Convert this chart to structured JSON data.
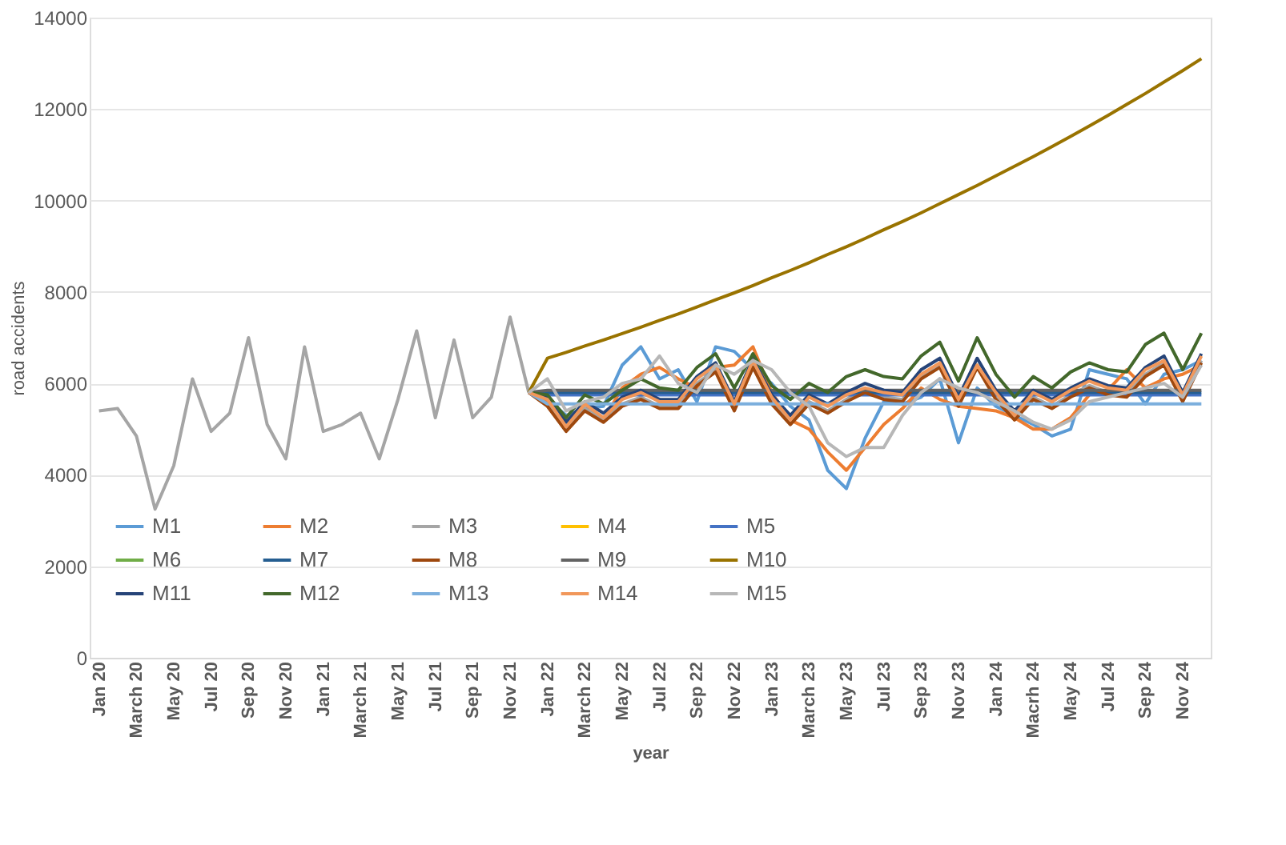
{
  "chart_data": {
    "type": "line",
    "xlabel": "year",
    "ylabel": "road accidents",
    "categories": [
      "Jan 20",
      null,
      "March 20",
      null,
      "May 20",
      null,
      "Jul 20",
      null,
      "Sep 20",
      null,
      "Nov 20",
      null,
      "Jan 21",
      null,
      "March 21",
      null,
      "May 21",
      null,
      "Jul 21",
      null,
      "Sep 21",
      null,
      "Nov 21",
      null,
      "Jan 22",
      null,
      "March 22",
      null,
      "May 22",
      null,
      "Jul 22",
      null,
      "Sep 22",
      null,
      "Nov 22",
      null,
      "Jan 23",
      null,
      "March 23",
      null,
      "May 23",
      null,
      "Jul 23",
      null,
      "Sep 23",
      null,
      "Nov 23",
      null,
      "Jan 24",
      null,
      "Macrh 24",
      null,
      "May 24",
      null,
      "Jul 24",
      null,
      "Sep 24",
      null,
      "Nov 24",
      null
    ],
    "ylim": [
      0,
      14000
    ],
    "yticks": [
      0,
      2000,
      4000,
      6000,
      8000,
      10000,
      12000,
      14000
    ],
    "grid": "y",
    "legend": "bottom left",
    "series": [
      {
        "color": "#a5a5a5",
        "values": [
          5400,
          5450,
          4850,
          3250,
          4200,
          6100,
          4950,
          5350,
          7000,
          5100,
          4350,
          6800,
          4950,
          5100,
          5350,
          4350,
          5650,
          7150,
          5250,
          6950,
          5250,
          5700,
          7450,
          5800,
          null,
          null,
          null,
          null,
          null,
          null,
          null,
          null,
          null,
          null,
          null,
          null,
          null,
          null,
          null,
          null,
          null,
          null,
          null,
          null,
          null,
          null,
          null,
          null,
          null,
          null,
          null,
          null,
          null,
          null,
          null,
          null,
          null,
          null,
          null,
          null
        ]
      },
      {
        "name": "M1",
        "color": "#5b9bd5",
        "values": [
          null,
          null,
          null,
          null,
          null,
          null,
          null,
          null,
          null,
          null,
          null,
          null,
          null,
          null,
          null,
          null,
          null,
          null,
          null,
          null,
          null,
          null,
          null,
          5800,
          5650,
          5300,
          5450,
          5500,
          6400,
          6800,
          6100,
          6300,
          5600,
          6800,
          6700,
          6300,
          6000,
          5500,
          5200,
          4100,
          3700,
          4800,
          5600,
          5550,
          5700,
          6100,
          4700,
          5900,
          5500,
          5300,
          5100,
          4850,
          5000,
          6300,
          6200,
          6100,
          5550,
          6200,
          6300,
          6500
        ]
      },
      {
        "name": "M2",
        "color": "#ed7d31",
        "values": [
          null,
          null,
          null,
          null,
          null,
          null,
          null,
          null,
          null,
          null,
          null,
          null,
          null,
          null,
          null,
          null,
          null,
          null,
          null,
          null,
          null,
          null,
          null,
          5800,
          5600,
          5000,
          5450,
          5200,
          5900,
          6200,
          6350,
          6100,
          5900,
          6350,
          6400,
          6800,
          5800,
          5200,
          5000,
          4500,
          4100,
          4600,
          5100,
          5450,
          5900,
          5650,
          5500,
          5450,
          5400,
          5250,
          5000,
          5000,
          5250,
          5750,
          5850,
          6300,
          5900,
          6100,
          6200,
          6400
        ]
      },
      {
        "name": "M3",
        "color": "#a5a5a5",
        "values": [
          null,
          null,
          null,
          null,
          null,
          null,
          null,
          null,
          null,
          null,
          null,
          null,
          null,
          null,
          null,
          null,
          null,
          null,
          null,
          null,
          null,
          null,
          null,
          5800,
          5550,
          5000,
          5450,
          5200,
          5550,
          5700,
          5500,
          5500,
          6000,
          6300,
          5450,
          6400,
          5600,
          5150,
          5600,
          5400,
          5650,
          5850,
          5700,
          5650,
          6150,
          6400,
          5550,
          6400,
          5700,
          5250,
          5700,
          5500,
          5750,
          5950,
          5800,
          5750,
          6200,
          6450,
          5650,
          6500
        ]
      },
      {
        "name": "M4",
        "color": "#ffc000",
        "values": [
          null,
          null,
          null,
          null,
          null,
          null,
          null,
          null,
          null,
          null,
          null,
          null,
          null,
          null,
          null,
          null,
          null,
          null,
          null,
          null,
          null,
          null,
          null,
          null,
          null,
          null,
          null,
          null,
          null,
          null,
          null,
          null,
          null,
          null,
          null,
          null,
          null,
          null,
          null,
          null,
          null,
          null,
          null,
          null,
          null,
          null,
          null,
          null,
          null,
          null,
          null,
          null,
          null,
          null,
          null,
          null,
          null,
          null,
          null,
          null
        ]
      },
      {
        "name": "M5",
        "color": "#4472c4",
        "values": [
          null,
          null,
          null,
          null,
          null,
          null,
          null,
          null,
          null,
          null,
          null,
          null,
          null,
          null,
          null,
          null,
          null,
          null,
          null,
          null,
          null,
          null,
          null,
          5800,
          5750,
          5750,
          5750,
          5750,
          5750,
          5750,
          5750,
          5750,
          5750,
          5750,
          5750,
          5750,
          5750,
          5750,
          5750,
          5750,
          5750,
          5750,
          5750,
          5750,
          5750,
          5750,
          5750,
          5750,
          5750,
          5750,
          5750,
          5750,
          5750,
          5750,
          5750,
          5750,
          5750,
          5750,
          5750,
          5750
        ]
      },
      {
        "name": "M6",
        "color": "#70ad47",
        "values": [
          null,
          null,
          null,
          null,
          null,
          null,
          null,
          null,
          null,
          null,
          null,
          null,
          null,
          null,
          null,
          null,
          null,
          null,
          null,
          null,
          null,
          null,
          null,
          null,
          null,
          null,
          null,
          null,
          null,
          null,
          null,
          null,
          null,
          null,
          null,
          null,
          null,
          null,
          null,
          null,
          null,
          null,
          null,
          null,
          null,
          null,
          null,
          null,
          null,
          null,
          null,
          null,
          null,
          null,
          null,
          null,
          null,
          null,
          null,
          null
        ]
      },
      {
        "name": "M7",
        "color": "#255e91",
        "values": [
          null,
          null,
          null,
          null,
          null,
          null,
          null,
          null,
          null,
          null,
          null,
          null,
          null,
          null,
          null,
          null,
          null,
          null,
          null,
          null,
          null,
          null,
          null,
          5800,
          5800,
          5800,
          5800,
          5800,
          5800,
          5800,
          5800,
          5800,
          5800,
          5800,
          5800,
          5800,
          5800,
          5800,
          5800,
          5800,
          5800,
          5800,
          5800,
          5800,
          5800,
          5800,
          5800,
          5800,
          5800,
          5800,
          5800,
          5800,
          5800,
          5800,
          5800,
          5800,
          5800,
          5800,
          5800,
          5800
        ]
      },
      {
        "name": "M8",
        "color": "#9e480e",
        "values": [
          null,
          null,
          null,
          null,
          null,
          null,
          null,
          null,
          null,
          null,
          null,
          null,
          null,
          null,
          null,
          null,
          null,
          null,
          null,
          null,
          null,
          null,
          null,
          5800,
          5500,
          4950,
          5400,
          5150,
          5500,
          5650,
          5450,
          5450,
          5950,
          6250,
          5400,
          6350,
          5550,
          5100,
          5550,
          5350,
          5600,
          5800,
          5650,
          5600,
          6100,
          6350,
          5500,
          6350,
          5650,
          5200,
          5650,
          5450,
          5700,
          5900,
          5750,
          5700,
          6150,
          6400,
          5600,
          6450
        ]
      },
      {
        "name": "M9",
        "color": "#636363",
        "values": [
          null,
          null,
          null,
          null,
          null,
          null,
          null,
          null,
          null,
          null,
          null,
          null,
          null,
          null,
          null,
          null,
          null,
          null,
          null,
          null,
          null,
          null,
          null,
          5800,
          5850,
          5850,
          5850,
          5850,
          5850,
          5850,
          5850,
          5850,
          5850,
          5850,
          5850,
          5850,
          5850,
          5850,
          5850,
          5850,
          5850,
          5850,
          5850,
          5850,
          5850,
          5850,
          5850,
          5850,
          5850,
          5850,
          5850,
          5850,
          5850,
          5850,
          5850,
          5850,
          5850,
          5850,
          5850,
          5850
        ]
      },
      {
        "name": "M10",
        "color": "#997300",
        "values": [
          null,
          null,
          null,
          null,
          null,
          null,
          null,
          null,
          null,
          null,
          null,
          null,
          null,
          null,
          null,
          null,
          null,
          null,
          null,
          null,
          null,
          null,
          null,
          5800,
          6550,
          6680,
          6820,
          6950,
          7090,
          7230,
          7380,
          7520,
          7670,
          7830,
          7980,
          8140,
          8310,
          8470,
          8640,
          8820,
          8990,
          9170,
          9360,
          9540,
          9730,
          9930,
          10130,
          10330,
          10540,
          10750,
          10960,
          11180,
          11400,
          11630,
          11860,
          12100,
          12340,
          12590,
          12840,
          13100
        ]
      },
      {
        "name": "M11",
        "color": "#264478",
        "values": [
          null,
          null,
          null,
          null,
          null,
          null,
          null,
          null,
          null,
          null,
          null,
          null,
          null,
          null,
          null,
          null,
          null,
          null,
          null,
          null,
          null,
          null,
          null,
          5800,
          5700,
          5150,
          5600,
          5350,
          5700,
          5850,
          5650,
          5650,
          6150,
          6450,
          5600,
          6550,
          5750,
          5300,
          5750,
          5550,
          5800,
          6000,
          5850,
          5800,
          6300,
          6550,
          5700,
          6550,
          5850,
          5400,
          5850,
          5650,
          5900,
          6100,
          5950,
          5900,
          6350,
          6600,
          5800,
          6650
        ]
      },
      {
        "name": "M12",
        "color": "#43682b",
        "values": [
          null,
          null,
          null,
          null,
          null,
          null,
          null,
          null,
          null,
          null,
          null,
          null,
          null,
          null,
          null,
          null,
          null,
          null,
          null,
          null,
          null,
          null,
          null,
          5800,
          5750,
          5250,
          5750,
          5550,
          5850,
          6100,
          5900,
          5850,
          6350,
          6650,
          5900,
          6650,
          5950,
          5650,
          6000,
          5800,
          6150,
          6300,
          6150,
          6100,
          6600,
          6900,
          6050,
          7000,
          6200,
          5700,
          6150,
          5900,
          6250,
          6450,
          6300,
          6250,
          6850,
          7100,
          6300,
          7100
        ]
      },
      {
        "name": "M13",
        "color": "#7cafdd",
        "values": [
          null,
          null,
          null,
          null,
          null,
          null,
          null,
          null,
          null,
          null,
          null,
          null,
          null,
          null,
          null,
          null,
          null,
          null,
          null,
          null,
          null,
          null,
          null,
          5800,
          5550,
          5550,
          5550,
          5550,
          5550,
          5550,
          5550,
          5550,
          5550,
          5550,
          5550,
          5550,
          5550,
          5550,
          5550,
          5550,
          5550,
          5550,
          5550,
          5550,
          5550,
          5550,
          5550,
          5550,
          5550,
          5550,
          5550,
          5550,
          5550,
          5550,
          5550,
          5550,
          5550,
          5550,
          5550,
          5550
        ]
      },
      {
        "name": "M14",
        "color": "#f1975a",
        "values": [
          null,
          null,
          null,
          null,
          null,
          null,
          null,
          null,
          null,
          null,
          null,
          null,
          null,
          null,
          null,
          null,
          null,
          null,
          null,
          null,
          null,
          null,
          null,
          5800,
          5650,
          5050,
          5550,
          5250,
          5650,
          5800,
          5600,
          5600,
          6100,
          6400,
          5550,
          6500,
          5700,
          5200,
          5700,
          5500,
          5750,
          5900,
          5800,
          5750,
          6200,
          6450,
          5650,
          6400,
          5800,
          5300,
          5800,
          5600,
          5850,
          6050,
          5900,
          5850,
          6300,
          6500,
          5750,
          6600
        ]
      },
      {
        "name": "M15",
        "color": "#b7b7b7",
        "values": [
          null,
          null,
          null,
          null,
          null,
          null,
          null,
          null,
          null,
          null,
          null,
          null,
          null,
          null,
          null,
          null,
          null,
          null,
          null,
          null,
          null,
          null,
          null,
          5800,
          6100,
          5400,
          5600,
          5700,
          6000,
          6100,
          6600,
          6000,
          5800,
          6400,
          6200,
          6500,
          6300,
          5800,
          5500,
          4700,
          4400,
          4600,
          4600,
          5300,
          5800,
          6100,
          5900,
          5800,
          5600,
          5400,
          5150,
          5000,
          5200,
          5600,
          5700,
          5800,
          5900,
          6000,
          5700,
          6400
        ]
      }
    ]
  }
}
